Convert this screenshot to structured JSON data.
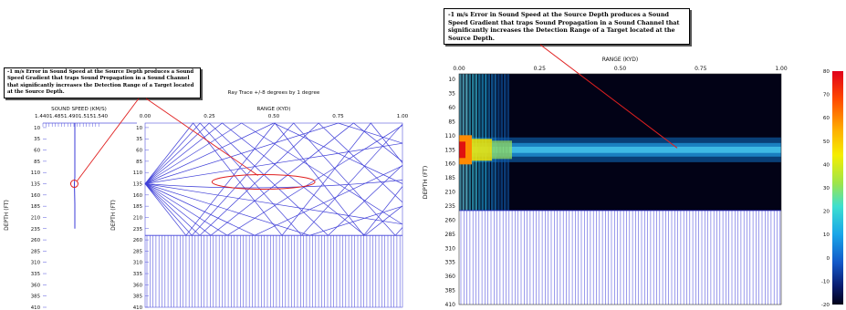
{
  "callouts": {
    "left": "-1 m/s Error in Sound Speed at the Source Depth produces a Sound Speed Gradient that traps Sound Propagation in a Sound Channel that significantly increases the Detection Range of a Target located at the Source Depth.",
    "right": "-1 m/s Error in Sound Speed at the Source Depth produces a Sound Speed Gradient that traps Sound Propagation in a Sound Channel that significantly increases the Detection Range of a Target located at the Source Depth."
  },
  "chart_data": [
    {
      "type": "line",
      "name": "sound-speed-profile",
      "title": "",
      "xlabel": "SOUND SPEED (KM/S)",
      "ylabel": "DEPTH (FT)",
      "x_tick_labels": [
        "1.440",
        "1.485",
        "1.490",
        "1.515",
        "1.540"
      ],
      "y_ticks": [
        10,
        35,
        60,
        85,
        110,
        135,
        160,
        185,
        210,
        235,
        260,
        285,
        310,
        335,
        360,
        385,
        410
      ],
      "ylim": [
        0,
        410
      ],
      "series": [
        {
          "x": [
            1.4955,
            1.4955,
            1.4947,
            1.4951,
            1.4955,
            1.4955
          ],
          "y": [
            0,
            120,
            135,
            150,
            180,
            235
          ]
        }
      ],
      "highlight_depth": 135
    },
    {
      "type": "line",
      "name": "ray-trace",
      "title": "Ray Trace +/-8 degrees by 1 degree",
      "xlabel": "RANGE (KYD)",
      "ylabel": "DEPTH (FT)",
      "x_ticks": [
        "0.00",
        "0.25",
        "0.50",
        "0.75",
        "1.00"
      ],
      "y_ticks": [
        10,
        35,
        60,
        85,
        110,
        135,
        160,
        185,
        210,
        235,
        260,
        285,
        310,
        335,
        360,
        385,
        410
      ],
      "xlim": [
        0,
        1
      ],
      "ylim": [
        0,
        410
      ],
      "source_depth": 135,
      "bottom_depth": 250,
      "ray_angles_deg": [
        -8,
        -7,
        -6,
        -5,
        -4,
        -3,
        -2,
        -1,
        0,
        1,
        2,
        3,
        4,
        5,
        6,
        7,
        8
      ],
      "trapped_zone": {
        "range": [
          0.26,
          0.66
        ],
        "depth": [
          122,
          148
        ]
      }
    },
    {
      "type": "heatmap",
      "name": "transmission-loss",
      "title": "",
      "xlabel": "RANGE (KYD)",
      "ylabel": "DEPTH (FT)",
      "x_ticks": [
        "0.00",
        "0.25",
        "0.50",
        "0.75",
        "1.00"
      ],
      "y_ticks": [
        10,
        35,
        60,
        85,
        110,
        135,
        160,
        185,
        210,
        235,
        260,
        285,
        310,
        335,
        360,
        385,
        410
      ],
      "xlim": [
        0,
        1
      ],
      "ylim": [
        0,
        410
      ],
      "bottom_depth": 243,
      "colorbar": {
        "ticks": [
          80,
          70,
          60,
          50,
          40,
          30,
          20,
          10,
          0,
          -10,
          -20
        ],
        "range": [
          -20,
          80
        ]
      },
      "channel": {
        "depth": 135,
        "half_width": 22
      }
    }
  ]
}
